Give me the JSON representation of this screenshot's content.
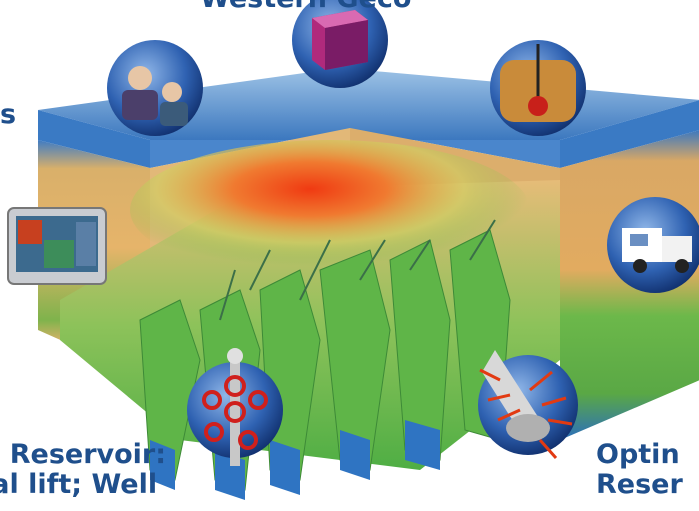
{
  "labels": {
    "top": "Western Geco",
    "bottom_left_line1": "e Reservoir:",
    "bottom_left_line2": "ial lift; Well",
    "bottom_right_line1": "Optin",
    "bottom_right_line2": "Reser",
    "left_edge": "s"
  },
  "icons": [
    "team-meeting-icon",
    "seismic-cube-icon",
    "drill-bit-icon",
    "monitor-map-icon",
    "service-truck-icon",
    "wellhead-valve-icon",
    "perforation-gun-icon"
  ],
  "colors": {
    "label": "#1f4f8c",
    "ocean": "#2a6db8",
    "sand": "#e3b36a",
    "reservoir_green": "#58b848",
    "hot_zone": "#e63a1a"
  }
}
